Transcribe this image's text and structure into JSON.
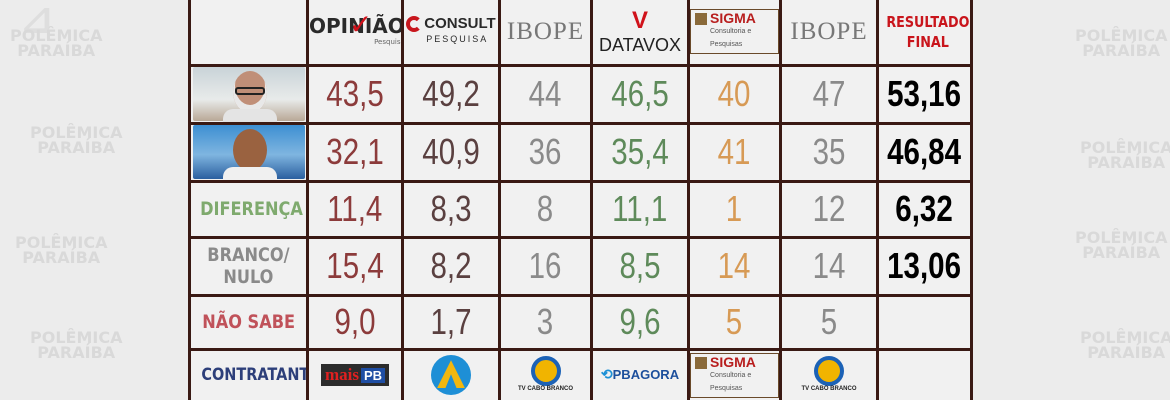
{
  "watermark": {
    "line1": "POLÊMICA",
    "line2": "PARAÍBA"
  },
  "headers": {
    "opiniao": {
      "name": "OPINIÃO",
      "sub": "Pesquisa"
    },
    "consult": {
      "name": "CONSULT",
      "sub": "PESQUISA"
    },
    "ibope1": {
      "name": "IBOPE"
    },
    "datavox": {
      "name": "DATAVOX"
    },
    "sigma": {
      "name": "SIGMA",
      "sub": "Consultoria e Pesquisas"
    },
    "ibope2": {
      "name": "IBOPE"
    },
    "final": {
      "line1": "RESULTADO",
      "line2": "FINAL"
    }
  },
  "rows": {
    "candidate1": {
      "opiniao": "43,5",
      "consult": "49,2",
      "ibope1": "44",
      "datavox": "46,5",
      "sigma": "40",
      "ibope2": "47",
      "final": "53,16"
    },
    "candidate2": {
      "opiniao": "32,1",
      "consult": "40,9",
      "ibope1": "36",
      "datavox": "35,4",
      "sigma": "41",
      "ibope2": "35",
      "final": "46,84"
    },
    "diferenca": {
      "label": "DIFERENÇA",
      "opiniao": "11,4",
      "consult": "8,3",
      "ibope1": "8",
      "datavox": "11,1",
      "sigma": "1",
      "ibope2": "12",
      "final": "6,32"
    },
    "branco": {
      "label_line1": "BRANCO/",
      "label_line2": "NULO",
      "opiniao": "15,4",
      "consult": "8,2",
      "ibope1": "16",
      "datavox": "8,5",
      "sigma": "14",
      "ibope2": "14",
      "final": "13,06"
    },
    "naosabe": {
      "label": "NÃO SABE",
      "opiniao": "9,0",
      "consult": "1,7",
      "ibope1": "3",
      "datavox": "9,6",
      "sigma": "5",
      "ibope2": "5",
      "final": ""
    }
  },
  "contratante": {
    "label": "CONTRATANTE",
    "opiniao": {
      "name": "mais",
      "suffix": "PB"
    },
    "consult": {
      "name": "tv-arapuan-logo"
    },
    "ibope1": {
      "sub": "TV CABO BRANCO"
    },
    "datavox": {
      "name": "PBAGORA"
    },
    "sigma": {
      "name": "SIGMA",
      "sub": "Consultoria e Pesquisas"
    },
    "ibope2": {
      "sub": "TV CABO BRANCO"
    }
  },
  "colors": {
    "border": "#3a1a14",
    "opiniao": "#8c3b3b",
    "consult": "#5a4040",
    "ibope": "#8a8a8a",
    "datavox": "#5e8a5a",
    "sigma": "#d79a55",
    "final": "#000000",
    "final_header": "#c9151c"
  }
}
